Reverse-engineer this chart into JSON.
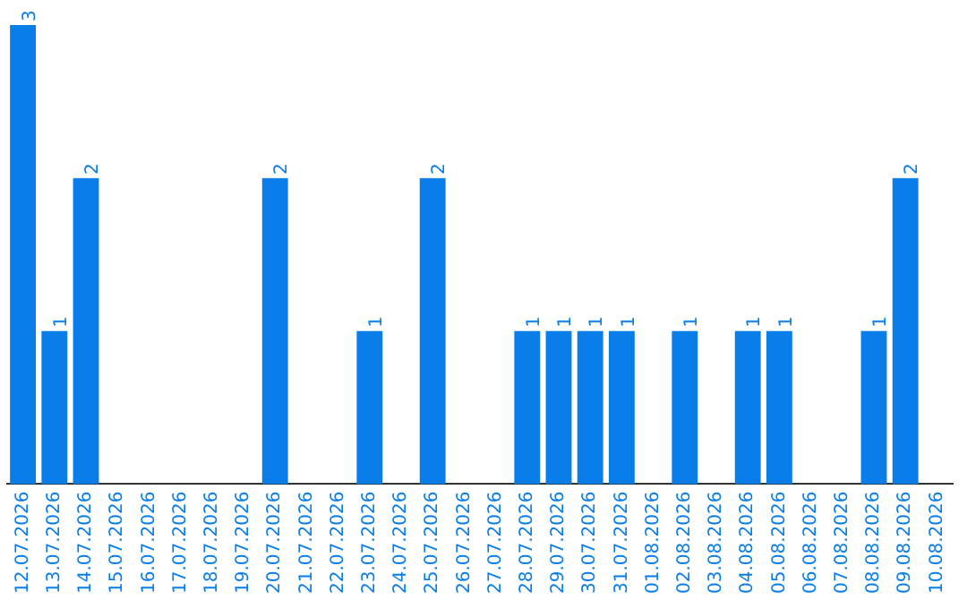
{
  "chart_data": {
    "type": "bar",
    "categories": [
      "12.07.2026",
      "13.07.2026",
      "14.07.2026",
      "15.07.2026",
      "16.07.2026",
      "17.07.2026",
      "18.07.2026",
      "19.07.2026",
      "20.07.2026",
      "21.07.2026",
      "22.07.2026",
      "23.07.2026",
      "24.07.2026",
      "25.07.2026",
      "26.07.2026",
      "27.07.2026",
      "28.07.2026",
      "29.07.2026",
      "30.07.2026",
      "31.07.2026",
      "01.08.2026",
      "02.08.2026",
      "03.08.2026",
      "04.08.2026",
      "05.08.2026",
      "06.08.2026",
      "07.08.2026",
      "08.08.2026",
      "09.08.2026",
      "10.08.2026"
    ],
    "values": [
      3,
      1,
      2,
      0,
      0,
      0,
      0,
      0,
      2,
      0,
      0,
      1,
      0,
      2,
      0,
      0,
      1,
      1,
      1,
      1,
      0,
      1,
      0,
      1,
      1,
      0,
      0,
      1,
      2,
      0
    ],
    "value_labels": [
      "3",
      "1",
      "2",
      null,
      null,
      null,
      null,
      null,
      "2",
      null,
      null,
      "1",
      null,
      "2",
      null,
      null,
      "1",
      "1",
      "1",
      "1",
      null,
      "1",
      null,
      "1",
      "1",
      null,
      null,
      "1",
      "2",
      null
    ],
    "color": "#0a7ee8",
    "grid": false,
    "legend": false,
    "tick_labels": "x"
  }
}
